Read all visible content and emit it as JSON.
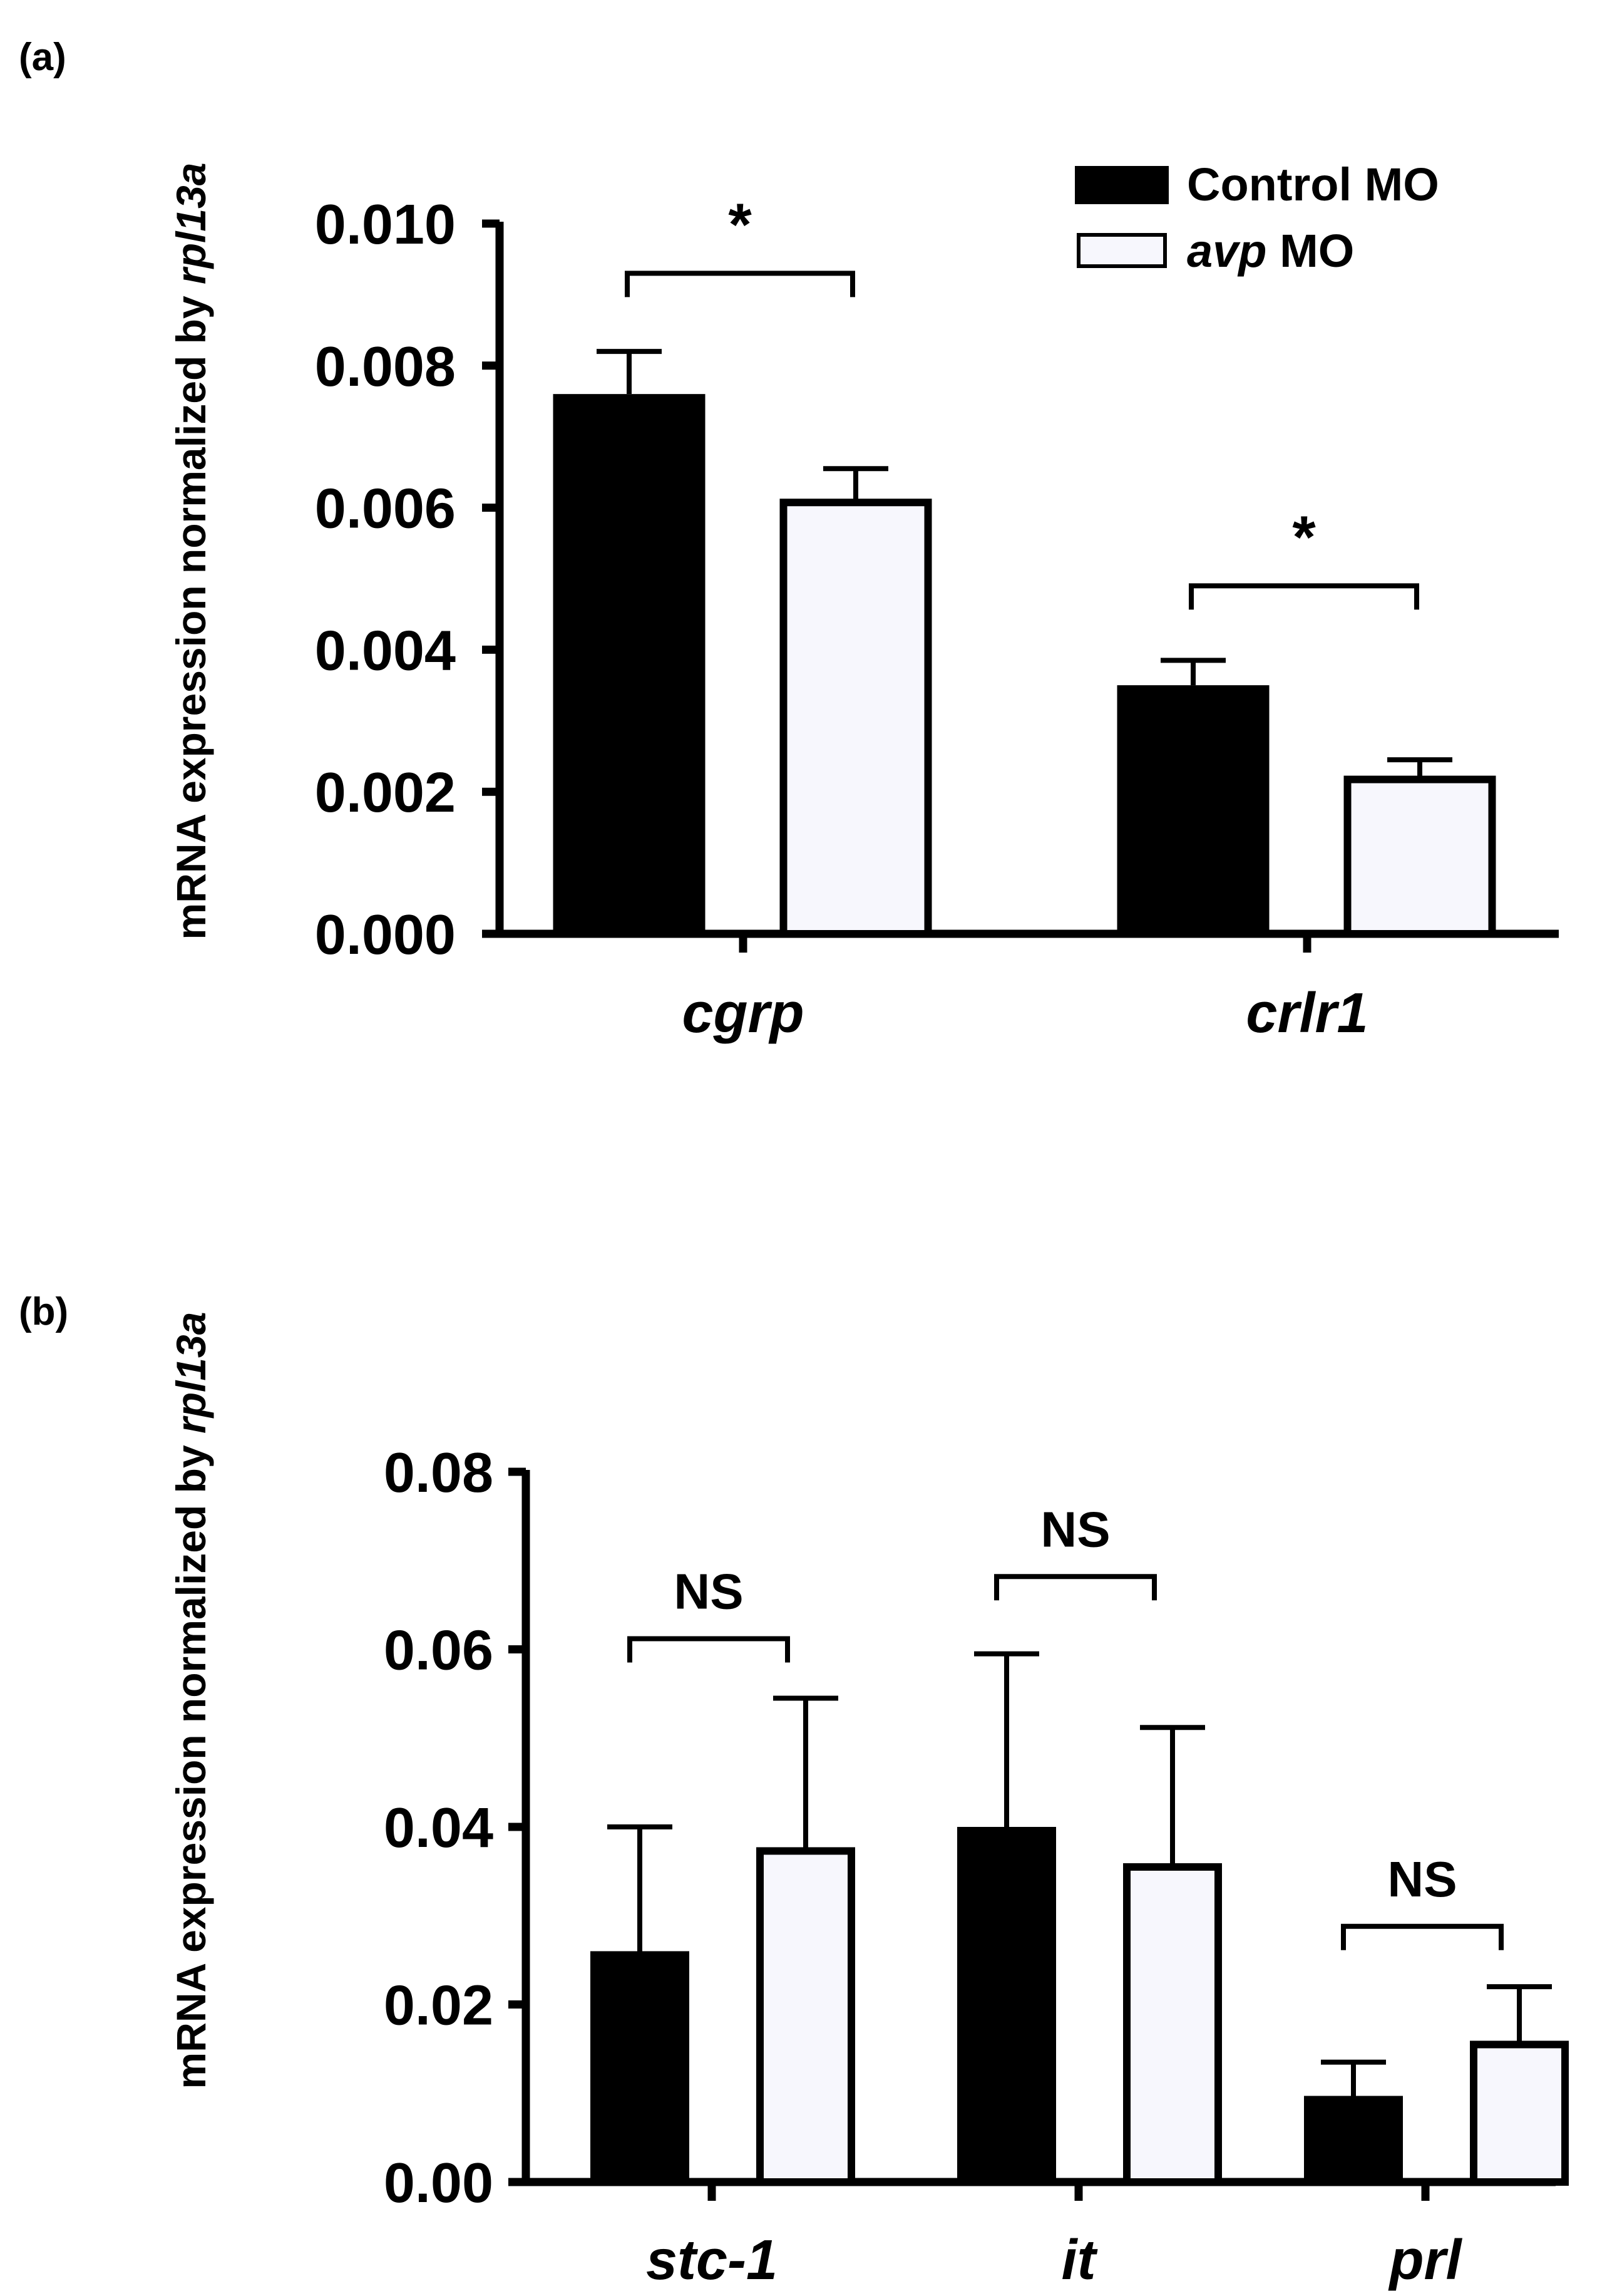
{
  "colors": {
    "control": "#000000",
    "avp": "#f7f7fd",
    "axis": "#000000"
  },
  "legend": {
    "items": [
      {
        "prefix": "Control MO",
        "suffix": ""
      },
      {
        "prefix": "avp",
        "suffix": " MO"
      }
    ]
  },
  "chart_data": [
    {
      "panel_label": "(a)",
      "type": "bar",
      "ylabel": {
        "prefix": "mRNA expression normalized by ",
        "italic": "rpl13a"
      },
      "ylim": [
        0,
        0.01
      ],
      "yticks": [
        0.0,
        0.002,
        0.004,
        0.006,
        0.008,
        0.01
      ],
      "ytick_labels": [
        "0.000",
        "0.002",
        "0.004",
        "0.006",
        "0.008",
        "0.010"
      ],
      "categories": [
        "cgrp",
        "crlr1"
      ],
      "series": [
        {
          "name": "Control MO",
          "values": [
            0.0076,
            0.0035
          ],
          "errors": [
            0.0006,
            0.00035
          ]
        },
        {
          "name": "avp MO",
          "values": [
            0.0061,
            0.0022
          ],
          "errors": [
            0.00045,
            0.00025
          ]
        }
      ],
      "significance": [
        {
          "category_index": 0,
          "label": "*",
          "y": 0.0093
        },
        {
          "category_index": 1,
          "label": "*",
          "y": 0.0049
        }
      ]
    },
    {
      "panel_label": "(b)",
      "type": "bar",
      "ylabel": {
        "prefix": "mRNA expression normalized by ",
        "italic": "rpl13a"
      },
      "ylim": [
        0,
        0.08
      ],
      "yticks": [
        0.0,
        0.02,
        0.04,
        0.06,
        0.08
      ],
      "ytick_labels": [
        "0.00",
        "0.02",
        "0.04",
        "0.06",
        "0.08"
      ],
      "categories": [
        "stc-1",
        "it",
        "prl"
      ],
      "series": [
        {
          "name": "Control MO",
          "values": [
            0.026,
            0.04,
            0.0097
          ],
          "errors": [
            0.014,
            0.0195,
            0.0038
          ]
        },
        {
          "name": "avp MO",
          "values": [
            0.0375,
            0.0357,
            0.0157
          ],
          "errors": [
            0.017,
            0.0155,
            0.0063
          ]
        }
      ],
      "significance": [
        {
          "category_index": 0,
          "label": "NS",
          "y": 0.0612
        },
        {
          "category_index": 1,
          "label": "NS",
          "y": 0.0682
        },
        {
          "category_index": 2,
          "label": "NS",
          "y": 0.0288
        }
      ]
    }
  ]
}
